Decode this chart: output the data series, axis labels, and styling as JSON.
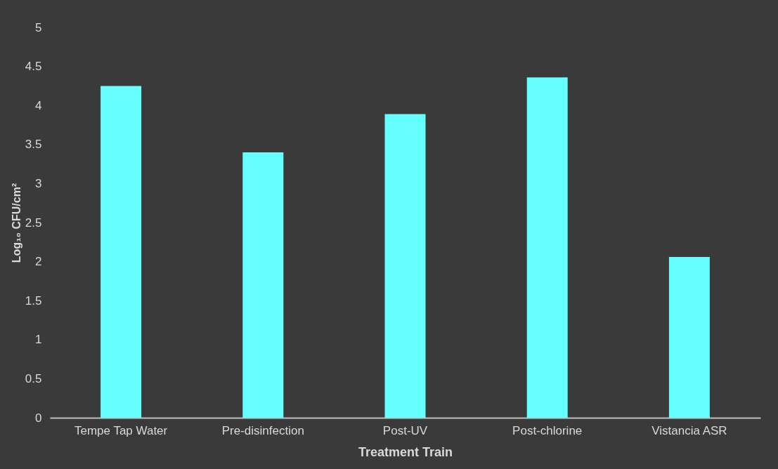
{
  "chart_data": {
    "type": "bar",
    "categories": [
      "Tempe Tap Water",
      "Pre-disinfection",
      "Post-UV",
      "Post-chlorine",
      "Vistancia ASR"
    ],
    "values": [
      4.25,
      3.4,
      3.89,
      4.36,
      2.06
    ],
    "color": "#66ffff",
    "xlabel": "Treatment Train",
    "ylabel": "Log₁₀ CFU/cm²",
    "ylim": [
      0,
      5
    ],
    "yticks": [
      0,
      0.5,
      1,
      1.5,
      2,
      2.5,
      3,
      3.5,
      4,
      4.5,
      5
    ],
    "grid": false
  }
}
